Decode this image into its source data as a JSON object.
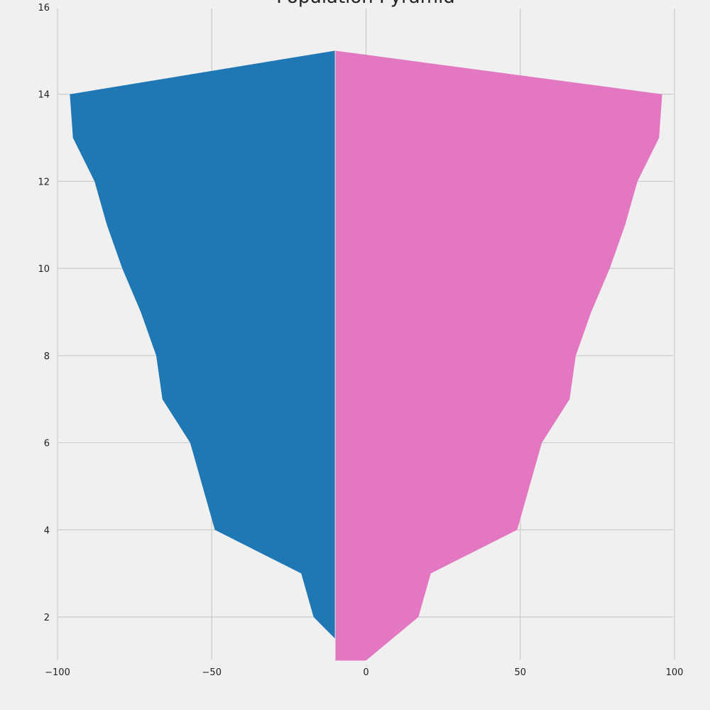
{
  "chart_data": {
    "type": "area",
    "title": "Population Pyramid",
    "xlabel": "",
    "ylabel": "",
    "xlim": [
      -100,
      100
    ],
    "ylim": [
      1,
      16
    ],
    "xticks": [
      -100,
      -50,
      0,
      50,
      100
    ],
    "xtick_labels": [
      "−100",
      "−50",
      "0",
      "50",
      "100"
    ],
    "yticks": [
      2,
      4,
      6,
      8,
      10,
      12,
      14,
      16
    ],
    "ytick_labels": [
      "2",
      "4",
      "6",
      "8",
      "10",
      "12",
      "14",
      "16"
    ],
    "grid": true,
    "baseline": -10,
    "series": [
      {
        "color": "#1f77b4",
        "points": [
          {
            "y": 1.5,
            "x": -10
          },
          {
            "y": 2,
            "x": -17
          },
          {
            "y": 3,
            "x": -21
          },
          {
            "y": 4,
            "x": -49
          },
          {
            "y": 6,
            "x": -57
          },
          {
            "y": 7,
            "x": -66
          },
          {
            "y": 8,
            "x": -68
          },
          {
            "y": 9,
            "x": -73
          },
          {
            "y": 10,
            "x": -79
          },
          {
            "y": 11,
            "x": -84
          },
          {
            "y": 12,
            "x": -88
          },
          {
            "y": 13,
            "x": -95
          },
          {
            "y": 14,
            "x": -96
          },
          {
            "y": 15,
            "x": -10
          }
        ]
      },
      {
        "color": "#e377c2",
        "points": [
          {
            "y": 1,
            "x": 0
          },
          {
            "y": 2,
            "x": 17
          },
          {
            "y": 3,
            "x": 21
          },
          {
            "y": 4,
            "x": 49
          },
          {
            "y": 6,
            "x": 57
          },
          {
            "y": 7,
            "x": 66
          },
          {
            "y": 8,
            "x": 68
          },
          {
            "y": 9,
            "x": 73
          },
          {
            "y": 10,
            "x": 79
          },
          {
            "y": 11,
            "x": 84
          },
          {
            "y": 12,
            "x": 88
          },
          {
            "y": 13,
            "x": 95
          },
          {
            "y": 14,
            "x": 96
          },
          {
            "y": 15,
            "x": -10
          }
        ]
      }
    ]
  }
}
